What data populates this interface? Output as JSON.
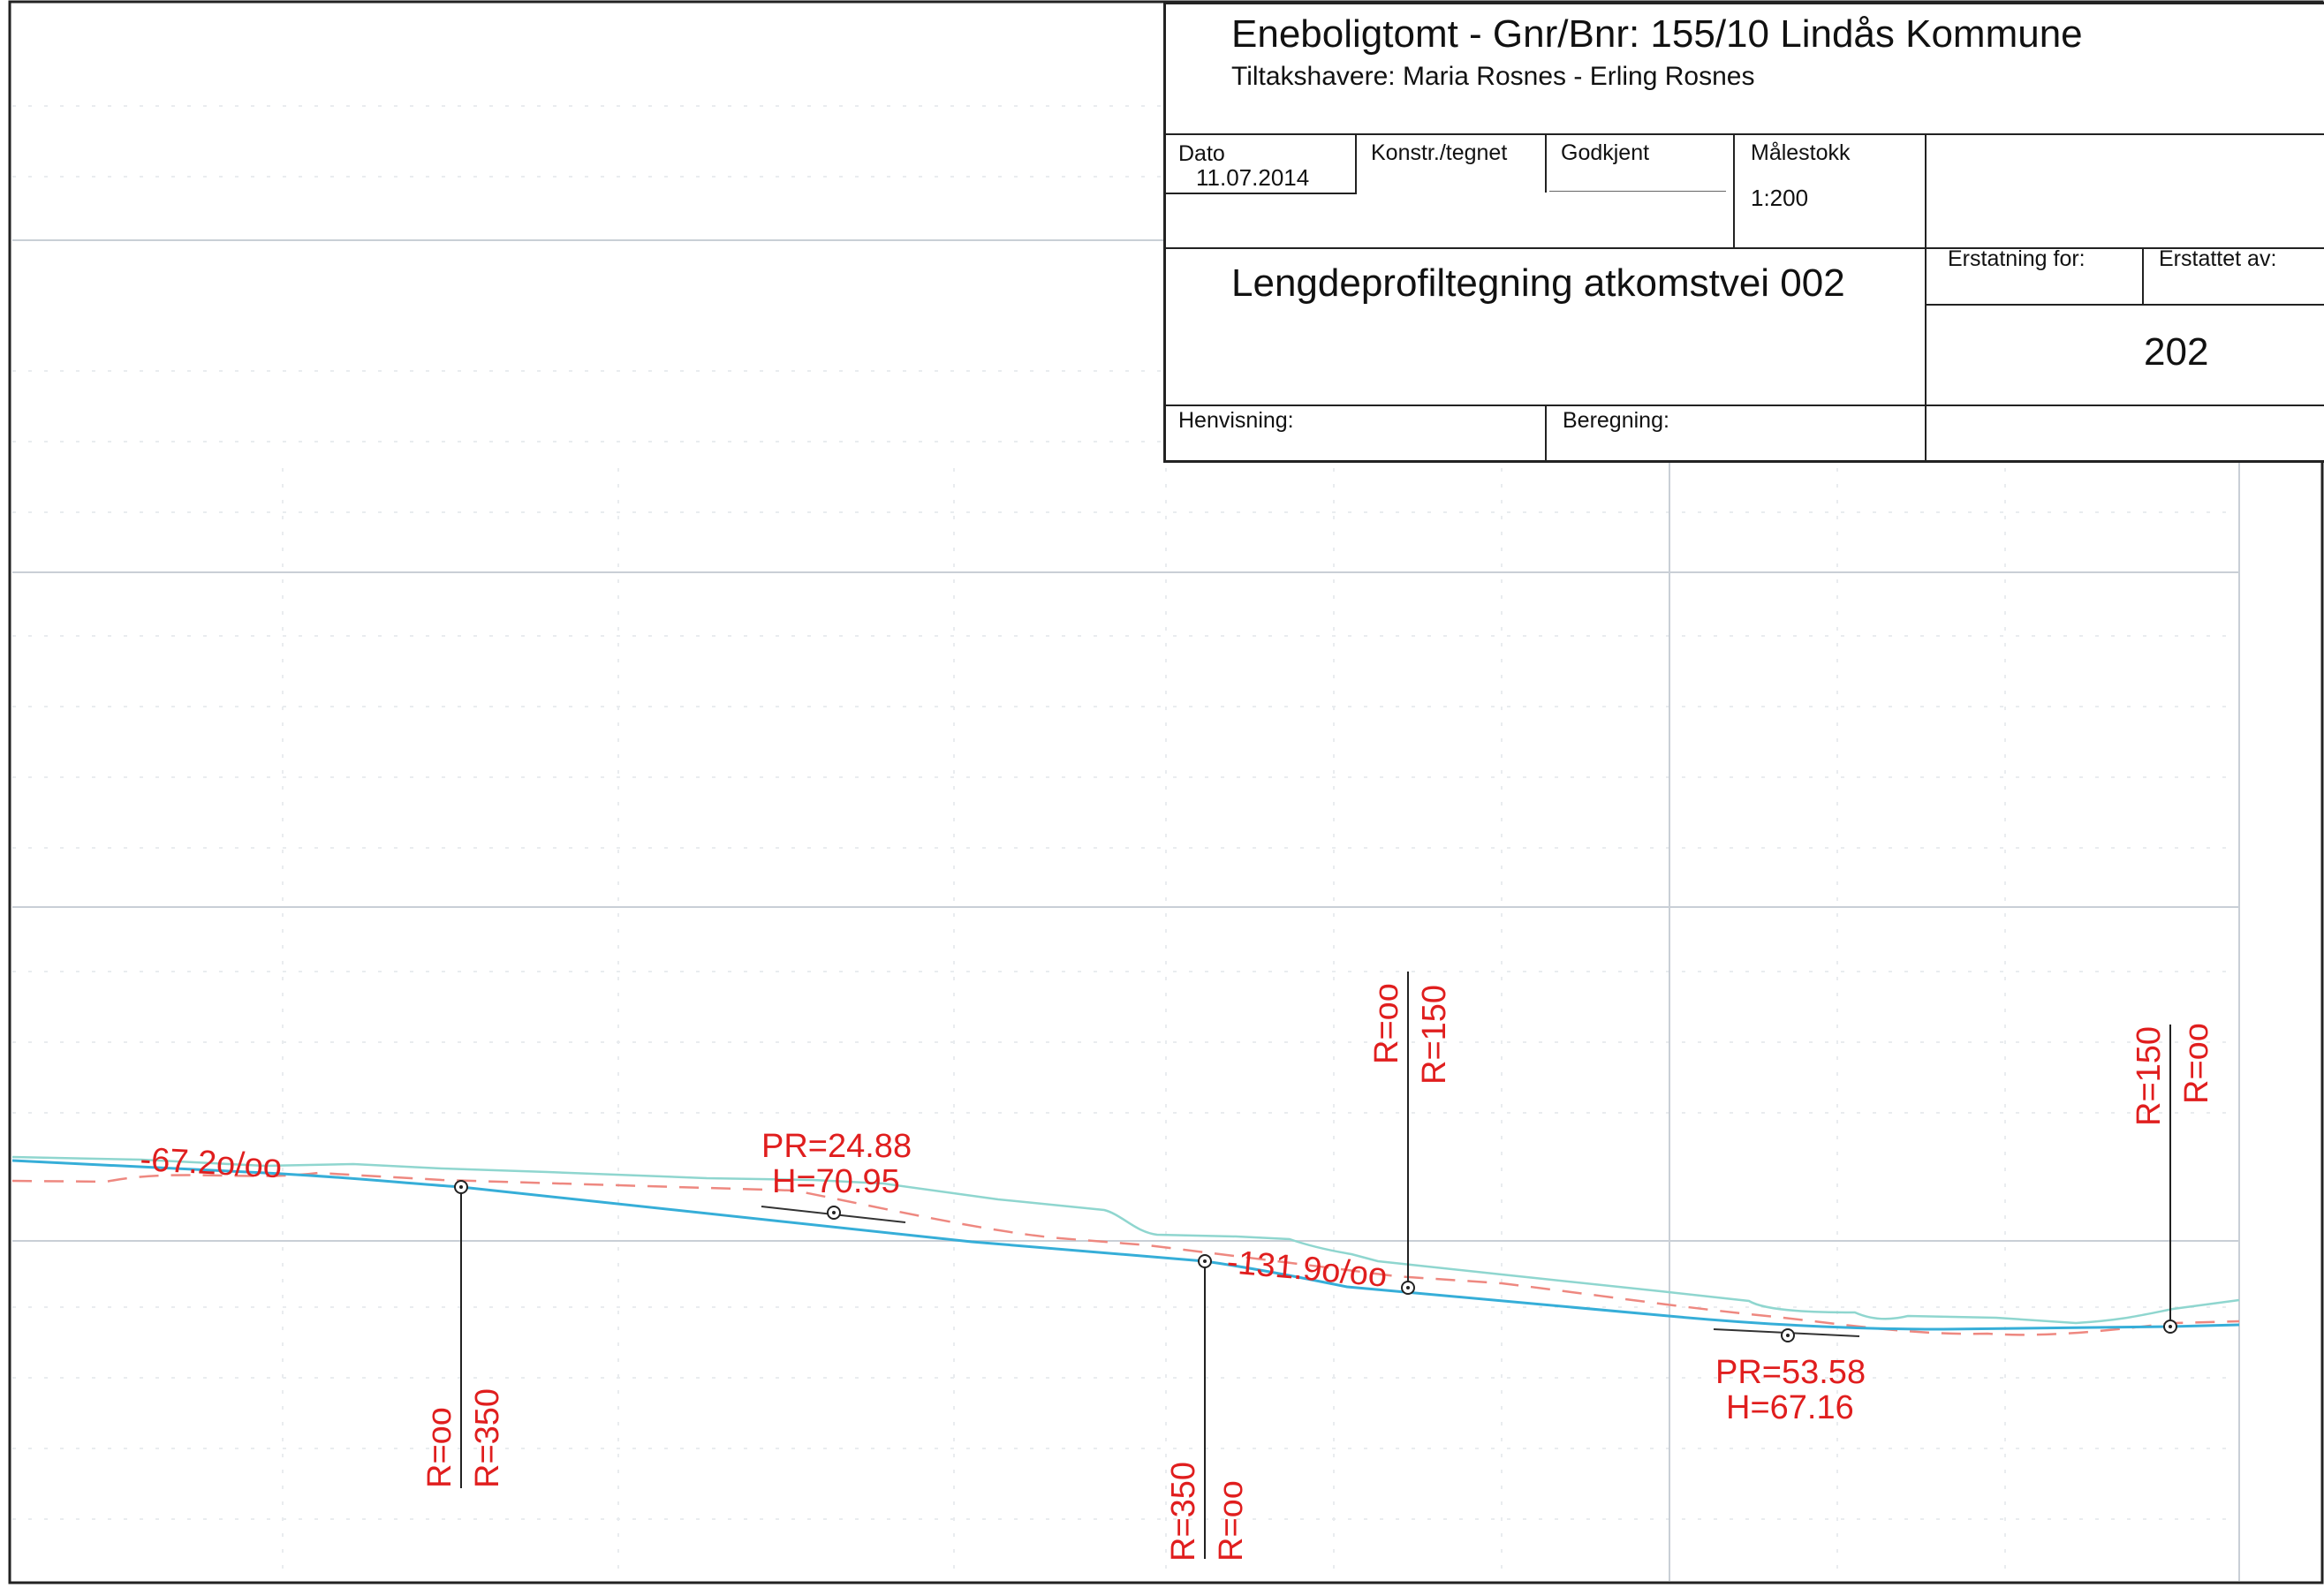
{
  "title_block": {
    "project_title": "Eneboligtomt - Gnr/Bnr: 155/10 Lindås Kommune",
    "developers": "Tiltakshavere: Maria Rosnes - Erling Rosnes",
    "date_label": "Dato",
    "date_value": "11.07.2014",
    "drawn_label": "Konstr./tegnet",
    "approved_label": "Godkjent",
    "scale_label": "Målestokk",
    "scale_value": "1:200",
    "drawing_title": "Lengdeprofiltegning atkomstvei 002",
    "replaces_label": "Erstatning for:",
    "replaced_by_label": "Erstattet av:",
    "drawing_number": "202",
    "reference_label": "Henvisning:",
    "calculation_label": "Beregning:"
  },
  "profile": {
    "annotations": {
      "slope_1": "-67.2o/oo",
      "slope_2": "-131.9o/oo",
      "pr1_station": "PR=24.88",
      "pr1_height": "H=70.95",
      "pr2_station": "PR=53.58",
      "pr2_height": "H=67.16",
      "v1_left": "R=oo",
      "v1_right": "R=350",
      "v2_left": "R=350",
      "v2_right": "R=oo",
      "v3_left": "R=oo",
      "v3_right": "R=150",
      "v4_left": "R=150",
      "v4_right": "R=oo"
    },
    "colors": {
      "annotation": "#e01e1e",
      "road_line": "#36aed8",
      "terrain_line": "#8fd6cf",
      "existing_dashed": "#ee8880",
      "grid": "#c9cfd6",
      "frame": "#222222"
    }
  }
}
